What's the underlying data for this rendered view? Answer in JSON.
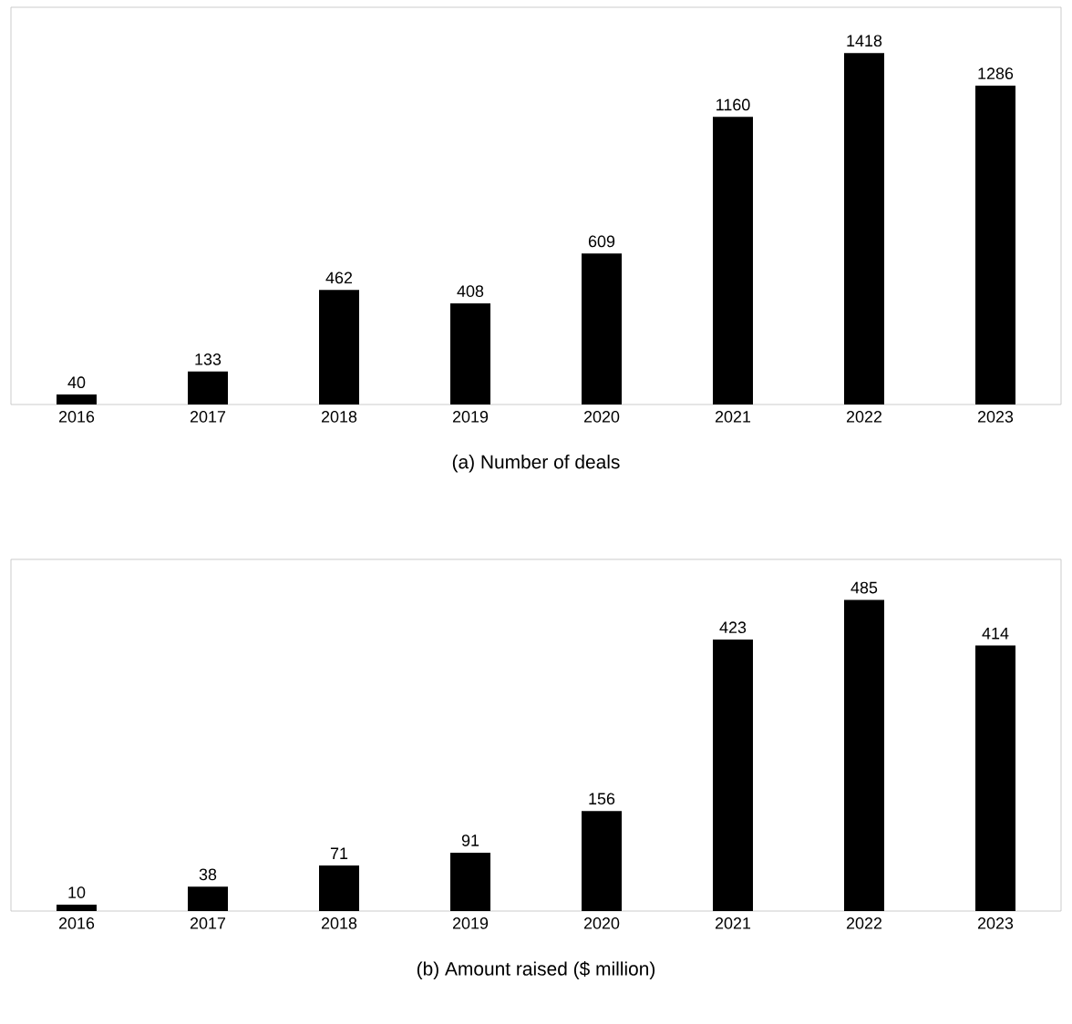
{
  "chart_data": [
    {
      "type": "bar",
      "title": "(a)  Number of deals",
      "categories": [
        "2016",
        "2017",
        "2018",
        "2019",
        "2020",
        "2021",
        "2022",
        "2023"
      ],
      "values": [
        40,
        133,
        462,
        408,
        609,
        1160,
        1418,
        1286
      ],
      "color": "#000000",
      "data_labels": true
    },
    {
      "type": "bar",
      "title": "(b)  Amount raised ($ million)",
      "categories": [
        "2016",
        "2017",
        "2018",
        "2019",
        "2020",
        "2021",
        "2022",
        "2023"
      ],
      "values": [
        10,
        38,
        71,
        91,
        156,
        423,
        485,
        414
      ],
      "color": "#000000",
      "data_labels": true
    }
  ]
}
